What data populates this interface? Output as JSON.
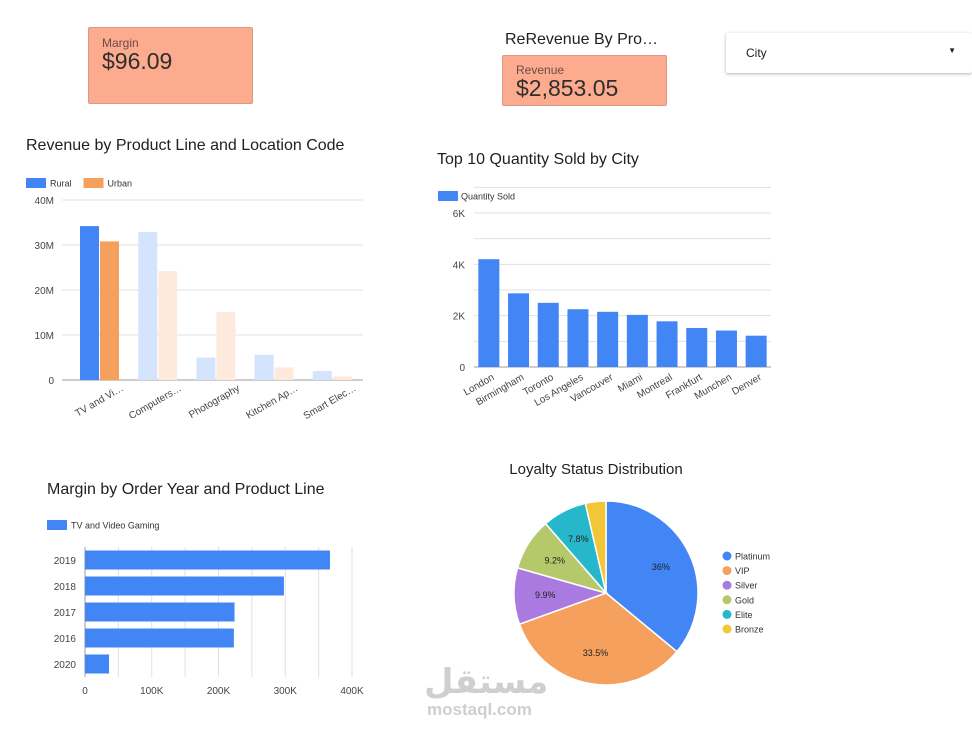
{
  "kpis": {
    "margin": {
      "label": "Margin",
      "value": "$96.09"
    },
    "revenue": {
      "label": "Revenue",
      "value": "$2,853.05"
    }
  },
  "header": {
    "revenue_by_product_title": "ReRevenue By Pro…"
  },
  "filter": {
    "label": "City",
    "icon": "caret-down-icon"
  },
  "chart_data": [
    {
      "type": "bar",
      "title": "Revenue by Product Line and Location Code",
      "categories": [
        "TV and Vi…",
        "Computers…",
        "Photography",
        "Kitchen Ap…",
        "Smart Elec…"
      ],
      "series": [
        {
          "name": "Rural",
          "color": "#4285f4",
          "values": [
            34.2,
            32.9,
            5.0,
            5.6,
            2.0
          ]
        },
        {
          "name": "Urban",
          "color": "#f6a05e",
          "values": [
            30.8,
            24.2,
            15.1,
            2.8,
            0.8
          ]
        }
      ],
      "highlighted_category": 0,
      "ylim": [
        0,
        40
      ],
      "yticks": [
        "0",
        "10M",
        "20M",
        "30M",
        "40M"
      ],
      "legend_position": "top-left",
      "grid": true
    },
    {
      "type": "bar",
      "title": "Top 10 Quantity Sold by City",
      "categories": [
        "London",
        "Birmingham",
        "Toronto",
        "Los Angeles",
        "Vancouver",
        "Miami",
        "Montreal",
        "Frankfurt",
        "Munchen",
        "Denver"
      ],
      "series": [
        {
          "name": "Quantity Sold",
          "color": "#4285f4",
          "values": [
            4200,
            2870,
            2500,
            2250,
            2150,
            2030,
            1780,
            1520,
            1420,
            1220
          ]
        }
      ],
      "ylim": [
        0,
        6000
      ],
      "yticks": [
        "0",
        "2K",
        "4K",
        "6K"
      ],
      "legend_position": "top-left",
      "grid": true
    },
    {
      "type": "bar",
      "orientation": "horizontal",
      "title": "Margin by Order Year and Product Line",
      "categories": [
        "2019",
        "2018",
        "2017",
        "2016",
        "2020"
      ],
      "series": [
        {
          "name": "TV and Video Gaming",
          "color": "#4285f4",
          "values": [
            367000,
            298000,
            224000,
            223000,
            36000
          ]
        }
      ],
      "xlim": [
        0,
        400000
      ],
      "xticks": [
        "0",
        "100K",
        "200K",
        "300K",
        "400K"
      ],
      "legend_position": "top-left",
      "grid": true
    },
    {
      "type": "pie",
      "title": "Loyalty Status Distribution",
      "slices": [
        {
          "name": "Platinum",
          "value": 36.0,
          "label": "36%",
          "color": "#4285f4"
        },
        {
          "name": "VIP",
          "value": 33.5,
          "label": "33.5%",
          "color": "#f6a05e"
        },
        {
          "name": "Silver",
          "value": 9.9,
          "label": "9.9%",
          "color": "#ab7ae0"
        },
        {
          "name": "Gold",
          "value": 9.2,
          "label": "9.2%",
          "color": "#b5c96b"
        },
        {
          "name": "Elite",
          "value": 7.8,
          "label": "7.8%",
          "color": "#26b7cb"
        },
        {
          "name": "Bronze",
          "value": 3.6,
          "label": "",
          "color": "#f2c636"
        }
      ],
      "legend_position": "right"
    }
  ],
  "watermark": {
    "arabic": "مستقل",
    "latin": "mostaql.com"
  }
}
